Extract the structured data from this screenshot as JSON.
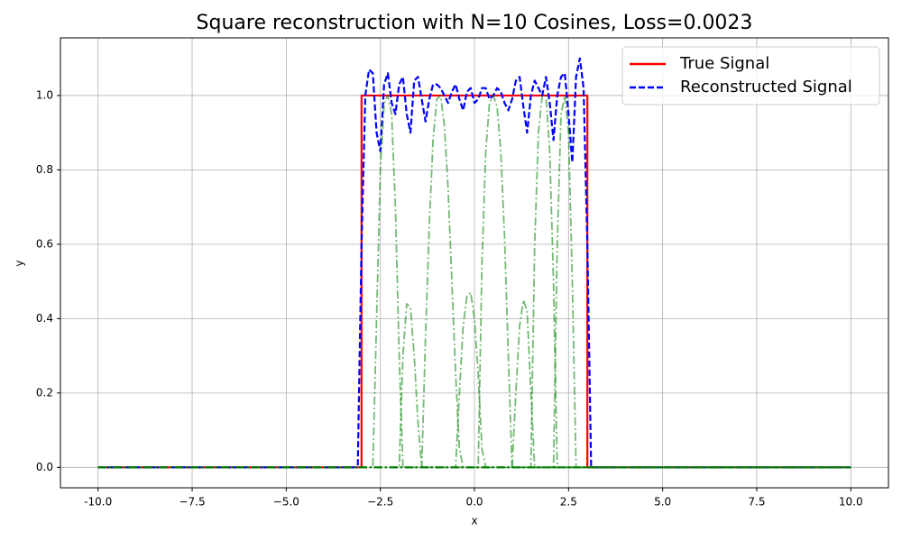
{
  "chart_data": {
    "type": "line",
    "title": "Square reconstruction with N=10 Cosines, Loss=0.0023",
    "xlabel": "x",
    "ylabel": "y",
    "xlim": [
      -11,
      11
    ],
    "xticks": [
      {
        "value": -10,
        "label": "-10.0"
      },
      {
        "value": -7.5,
        "label": "−7.5"
      },
      {
        "value": -5,
        "label": "−5.0"
      },
      {
        "value": -2.5,
        "label": "−2.5"
      },
      {
        "value": 0,
        "label": "0.0"
      },
      {
        "value": 2.5,
        "label": "2.5"
      },
      {
        "value": 5,
        "label": "5.0"
      },
      {
        "value": 7.5,
        "label": "7.5"
      },
      {
        "value": 10,
        "label": "10.0"
      }
    ],
    "ylim": [
      -0.055,
      1.155
    ],
    "yticks": [
      {
        "value": 0,
        "label": "0.0"
      },
      {
        "value": 0.2,
        "label": "0.2"
      },
      {
        "value": 0.4,
        "label": "0.4"
      },
      {
        "value": 0.6,
        "label": "0.6"
      },
      {
        "value": 0.8,
        "label": "0.8"
      },
      {
        "value": 1,
        "label": "1.0"
      }
    ],
    "grid": true,
    "legend": "upper right",
    "series": [
      {
        "name": "True Signal",
        "color": "#ff0000",
        "linestyle": "solid",
        "x": [
          -10,
          -3.0,
          -3.0,
          3.0,
          3.0,
          10
        ],
        "values": [
          0,
          0,
          1,
          1,
          0,
          0
        ]
      },
      {
        "name": "Reconstructed Signal",
        "color": "#0000ff",
        "linestyle": "dashed",
        "x": [
          -10,
          -3.1,
          -3.0,
          -2.9,
          -2.8,
          -2.7,
          -2.6,
          -2.5,
          -2.4,
          -2.3,
          -2.2,
          -2.1,
          -2.0,
          -1.9,
          -1.8,
          -1.7,
          -1.6,
          -1.5,
          -1.4,
          -1.3,
          -1.2,
          -1.1,
          -1.0,
          -0.9,
          -0.8,
          -0.7,
          -0.6,
          -0.5,
          -0.4,
          -0.3,
          -0.2,
          -0.1,
          0.0,
          0.1,
          0.2,
          0.3,
          0.4,
          0.5,
          0.6,
          0.7,
          0.8,
          0.9,
          1.0,
          1.1,
          1.2,
          1.3,
          1.4,
          1.5,
          1.6,
          1.7,
          1.8,
          1.9,
          2.0,
          2.1,
          2.2,
          2.3,
          2.4,
          2.5,
          2.6,
          2.7,
          2.8,
          2.9,
          3.0,
          3.1,
          10
        ],
        "values": [
          0,
          0,
          0.6,
          1.0,
          1.07,
          1.06,
          0.9,
          0.85,
          1.03,
          1.06,
          0.98,
          0.95,
          1.03,
          1.05,
          0.95,
          0.9,
          1.04,
          1.05,
          0.99,
          0.93,
          0.99,
          1.03,
          1.03,
          1.02,
          1.0,
          0.98,
          1.01,
          1.03,
          0.99,
          0.96,
          1.01,
          1.02,
          0.98,
          0.99,
          1.02,
          1.02,
          0.99,
          1.0,
          1.02,
          1.01,
          0.98,
          0.96,
          0.99,
          1.04,
          1.05,
          0.97,
          0.9,
          1.0,
          1.04,
          1.02,
          1.0,
          1.05,
          0.98,
          0.88,
          1.0,
          1.05,
          1.06,
          0.95,
          0.82,
          1.05,
          1.1,
          1.02,
          0.6,
          0,
          0
        ]
      },
      {
        "color": "#008000",
        "alpha": 0.55,
        "linestyle": "dashdot",
        "x": [
          -10,
          -2.7,
          -2.6,
          -2.5,
          -2.4,
          -2.3,
          -2.2,
          -2.1,
          -2.0,
          -1.9,
          10
        ],
        "values": [
          0,
          0,
          0.4,
          0.8,
          0.98,
          1.0,
          0.95,
          0.7,
          0.3,
          0,
          0
        ]
      },
      {
        "color": "#008000",
        "alpha": 0.55,
        "linestyle": "dashdot",
        "x": [
          -10,
          -2.0,
          -1.9,
          -1.8,
          -1.7,
          -1.6,
          -1.5,
          -1.4,
          10
        ],
        "values": [
          0,
          0,
          0.3,
          0.44,
          0.43,
          0.3,
          0.12,
          0,
          0
        ]
      },
      {
        "color": "#008000",
        "alpha": 0.55,
        "linestyle": "dashdot",
        "x": [
          -10,
          -1.4,
          -1.3,
          -1.2,
          -1.1,
          -1.0,
          -0.9,
          -0.8,
          -0.7,
          -0.6,
          -0.5,
          -0.4,
          -0.3,
          10
        ],
        "values": [
          0,
          0,
          0.35,
          0.65,
          0.88,
          0.99,
          1.0,
          0.92,
          0.75,
          0.5,
          0.25,
          0.05,
          0,
          0
        ]
      },
      {
        "color": "#008000",
        "alpha": 0.55,
        "linestyle": "dashdot",
        "x": [
          -10,
          -0.5,
          -0.4,
          -0.3,
          -0.2,
          -0.1,
          0.0,
          0.1,
          0.2,
          0.3,
          10
        ],
        "values": [
          0,
          0,
          0.2,
          0.38,
          0.46,
          0.47,
          0.4,
          0.25,
          0.05,
          0,
          0
        ]
      },
      {
        "color": "#008000",
        "alpha": 0.55,
        "linestyle": "dashdot",
        "x": [
          -10,
          0.1,
          0.2,
          0.3,
          0.4,
          0.5,
          0.6,
          0.7,
          0.8,
          0.9,
          1.0,
          10
        ],
        "values": [
          0,
          0,
          0.55,
          0.85,
          0.98,
          1.0,
          0.97,
          0.85,
          0.62,
          0.3,
          0,
          0
        ]
      },
      {
        "color": "#008000",
        "alpha": 0.55,
        "linestyle": "dashdot",
        "x": [
          -10,
          1.0,
          1.1,
          1.2,
          1.3,
          1.4,
          1.5,
          1.6,
          10
        ],
        "values": [
          0,
          0,
          0.2,
          0.38,
          0.45,
          0.42,
          0.2,
          0,
          0
        ]
      },
      {
        "color": "#008000",
        "alpha": 0.55,
        "linestyle": "dashdot",
        "x": [
          -10,
          1.5,
          1.6,
          1.7,
          1.8,
          1.9,
          2.0,
          2.1,
          2.2,
          10
        ],
        "values": [
          0,
          0,
          0.6,
          0.9,
          1.0,
          1.0,
          0.85,
          0.5,
          0,
          0
        ]
      },
      {
        "color": "#008000",
        "alpha": 0.55,
        "linestyle": "dashdot",
        "x": [
          -10,
          2.1,
          2.2,
          2.3,
          2.4,
          2.5,
          2.6,
          2.7,
          10
        ],
        "values": [
          0,
          0,
          0.6,
          0.95,
          1.0,
          0.9,
          0.5,
          0,
          0
        ]
      }
    ]
  }
}
